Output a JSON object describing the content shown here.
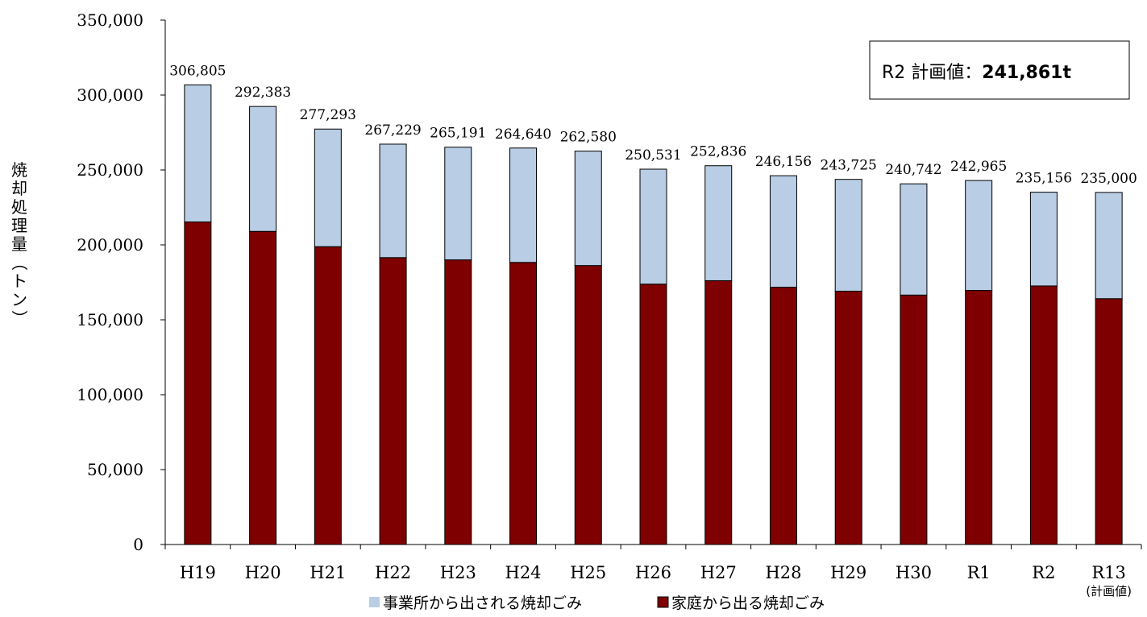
{
  "chart_data": {
    "type": "bar",
    "stacked": true,
    "ylabel": "焼却処理量（トン）",
    "ylim": [
      0,
      350000
    ],
    "yticks": [
      0,
      50000,
      100000,
      150000,
      200000,
      250000,
      300000,
      350000
    ],
    "grid": false,
    "legend_position": "bottom",
    "categories": [
      "H19",
      "H20",
      "H21",
      "H22",
      "H23",
      "H24",
      "H25",
      "H26",
      "H27",
      "H28",
      "H29",
      "H30",
      "R1",
      "R2",
      "R13"
    ],
    "category_sublabels": [
      "",
      "",
      "",
      "",
      "",
      "",
      "",
      "",
      "",
      "",
      "",
      "",
      "",
      "",
      "(計画値)"
    ],
    "series": [
      {
        "name": "家庭から出る焼却ごみ",
        "color": "#7f0000",
        "values": [
          215300,
          209000,
          198800,
          191500,
          190000,
          188300,
          186200,
          173800,
          176100,
          171700,
          169100,
          166500,
          169600,
          172600,
          164100
        ]
      },
      {
        "name": "事業所から出される焼却ごみ",
        "color": "#b9cde4",
        "values": [
          91505,
          83383,
          78493,
          75729,
          75191,
          76340,
          76380,
          76731,
          76736,
          74456,
          74625,
          74242,
          73365,
          62556,
          70900
        ]
      }
    ],
    "totals": [
      306805,
      292383,
      277293,
      267229,
      265191,
      264640,
      262580,
      250531,
      252836,
      246156,
      243725,
      240742,
      242965,
      235156,
      235000
    ],
    "total_labels": [
      "306,805",
      "292,383",
      "277,293",
      "267,229",
      "265,191",
      "264,640",
      "262,580",
      "250,531",
      "252,836",
      "246,156",
      "243,725",
      "240,742",
      "242,965",
      "235,156",
      "235,000"
    ],
    "legend": [
      "事業所から出される焼却ごみ",
      "家庭から出る焼却ごみ"
    ],
    "annotation": {
      "label": "R2 計画値：",
      "value": "241,861t"
    }
  }
}
